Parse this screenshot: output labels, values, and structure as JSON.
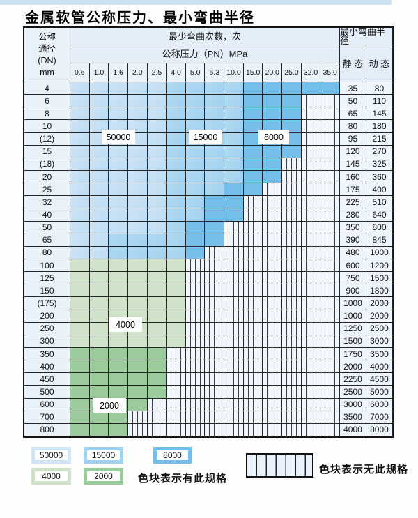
{
  "page": {
    "title": "金属软管公称压力、最小弯曲半径"
  },
  "colors": {
    "blue_light": "#cfe4f5",
    "blue_medium": "#a0d1ef",
    "blue_dark": "#74bfe9",
    "green_light": "#cfe2c9",
    "green_dark": "#9bca9c"
  },
  "table": {
    "corner_lines": [
      "公称",
      "通径",
      "(DN)",
      "mm"
    ],
    "cycles_header": "最少弯曲次数，次",
    "radius_header": "最小弯曲半径",
    "pressure_header": "公称压力（PN）MPa",
    "pressure_columns": [
      "0.6",
      "1.0",
      "1.6",
      "2.0",
      "2.5",
      "4.0",
      "5.0",
      "6.3",
      "10.0",
      "15.0",
      "20.0",
      "25.0",
      "32.0",
      "35.0"
    ],
    "static_header": "静 态",
    "dynamic_header": "动 态",
    "rows": [
      {
        "dn": "4",
        "cells": "11111222233333",
        "static": "35",
        "dynamic": "80"
      },
      {
        "dn": "6",
        "cells": "111112222333..",
        "static": "50",
        "dynamic": "110"
      },
      {
        "dn": "8",
        "cells": "111112222333..",
        "static": "65",
        "dynamic": "145"
      },
      {
        "dn": "10",
        "cells": "111112222333..",
        "static": "80",
        "dynamic": "180"
      },
      {
        "dn": "(12)",
        "cells": "111112222333..",
        "static": "95",
        "dynamic": "215"
      },
      {
        "dn": "15",
        "cells": "111112222333..",
        "static": "120",
        "dynamic": "270"
      },
      {
        "dn": "(18)",
        "cells": "11111222233...",
        "static": "145",
        "dynamic": "325"
      },
      {
        "dn": "20",
        "cells": "11111222233...",
        "static": "160",
        "dynamic": "360"
      },
      {
        "dn": "25",
        "cells": "1111122233....",
        "static": "175",
        "dynamic": "400"
      },
      {
        "dn": "32",
        "cells": "111112233.....",
        "static": "225",
        "dynamic": "510"
      },
      {
        "dn": "40",
        "cells": "111112233.....",
        "static": "280",
        "dynamic": "640"
      },
      {
        "dn": "50",
        "cells": "11111233......",
        "static": "350",
        "dynamic": "800"
      },
      {
        "dn": "65",
        "cells": "11222233......",
        "static": "390",
        "dynamic": "845"
      },
      {
        "dn": "80",
        "cells": "1122223.......",
        "static": "480",
        "dynamic": "1000"
      },
      {
        "dn": "100",
        "cells": "aaaaaa........",
        "static": "600",
        "dynamic": "1200"
      },
      {
        "dn": "125",
        "cells": "aaaaaa........",
        "static": "750",
        "dynamic": "1500"
      },
      {
        "dn": "150",
        "cells": "aaaaaa........",
        "static": "900",
        "dynamic": "1800"
      },
      {
        "dn": "(175)",
        "cells": "aaaaaa........",
        "static": "1000",
        "dynamic": "2000"
      },
      {
        "dn": "200",
        "cells": "aaaaaa........",
        "static": "1000",
        "dynamic": "2000"
      },
      {
        "dn": "250",
        "cells": "aaaaaa........",
        "static": "1250",
        "dynamic": "2500"
      },
      {
        "dn": "300",
        "cells": "aaaaaa........",
        "static": "1500",
        "dynamic": "3000"
      },
      {
        "dn": "350",
        "cells": "bbbbb.........",
        "static": "1750",
        "dynamic": "3500"
      },
      {
        "dn": "400",
        "cells": "bbbbb.........",
        "static": "2000",
        "dynamic": "4000"
      },
      {
        "dn": "450",
        "cells": "bbbbb.........",
        "static": "2250",
        "dynamic": "4500"
      },
      {
        "dn": "500",
        "cells": "bbbbb.........",
        "static": "2500",
        "dynamic": "5000"
      },
      {
        "dn": "600",
        "cells": "bbbb..........",
        "static": "3000",
        "dynamic": "6000"
      },
      {
        "dn": "700",
        "cells": "bbb...........",
        "static": "3500",
        "dynamic": "7000"
      },
      {
        "dn": "800",
        "cells": "bbb...........",
        "static": "4000",
        "dynamic": "8000"
      }
    ]
  },
  "overlays": [
    {
      "text": "50000"
    },
    {
      "text": "15000"
    },
    {
      "text": "8000"
    },
    {
      "text": "4000"
    },
    {
      "text": "2000"
    }
  ],
  "legend": {
    "items": [
      {
        "value": "50000",
        "color": "blue_light"
      },
      {
        "value": "15000",
        "color": "blue_medium"
      },
      {
        "value": "8000",
        "color": "blue_dark"
      },
      {
        "value": "4000",
        "color": "green_light"
      },
      {
        "value": "2000",
        "color": "green_dark"
      }
    ],
    "has_spec_label": "色块表示有此规格",
    "no_spec_label": "色块表示无此规格"
  }
}
